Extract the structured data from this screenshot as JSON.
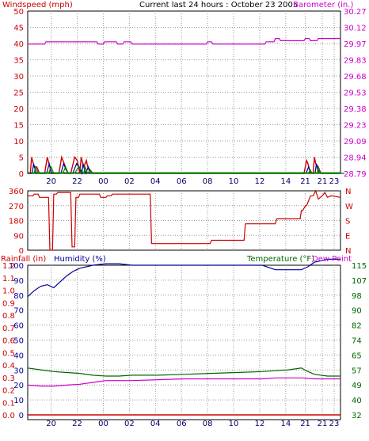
{
  "header": {
    "title": "Current last 24 hours : October 23 2005",
    "left_label": "Windspeed (mph)",
    "right_label": "Barometer (in.)"
  },
  "colors": {
    "wind": "#cc0000",
    "barometer": "#cc00cc",
    "direction": "#cc0000",
    "humidity": "#000099",
    "temperature": "#006600",
    "dewpoint": "#cc00cc",
    "rainfall": "#cc0000",
    "grid": "#999999",
    "gust_blue": "#000099",
    "gust_green": "#008800"
  },
  "x_ticks": [
    "20",
    "22",
    "00",
    "02",
    "04",
    "06",
    "08",
    "10",
    "12",
    "14",
    "21",
    "21",
    "23"
  ],
  "chart_data": [
    {
      "type": "line",
      "name": "wind-barometer",
      "title": "Current last 24 hours : October 23 2005",
      "ylabel": "Windspeed (mph)",
      "y2label": "Barometer (in.)",
      "ylim": [
        0,
        50
      ],
      "yticks": [
        "0",
        "5",
        "10",
        "15",
        "20",
        "25",
        "30",
        "35",
        "40",
        "45",
        "50"
      ],
      "y2lim": [
        28.79,
        30.27
      ],
      "y2ticks": [
        "28.79",
        "28.94",
        "29.09",
        "29.23",
        "29.38",
        "29.53",
        "29.68",
        "29.83",
        "29.97",
        "30.12",
        "30.27"
      ],
      "grid": true,
      "series": [
        {
          "name": "Barometer (in.)",
          "axis": "right",
          "x": [
            0,
            1.3,
            1.4,
            5.3,
            5.4,
            5.8,
            5.9,
            6.8,
            6.9,
            7.3,
            7.4,
            7.9,
            8.0,
            13.7,
            13.8,
            14.1,
            14.2,
            18.2,
            18.3,
            18.5,
            18.6,
            18.9,
            19.0,
            19.3,
            19.4,
            21.2,
            21.3,
            21.6,
            21.7,
            22.2,
            22.3,
            22.6,
            22.7,
            24
          ],
          "y": [
            29.97,
            29.97,
            29.99,
            29.99,
            29.97,
            29.97,
            29.99,
            29.99,
            29.97,
            29.97,
            29.99,
            29.99,
            29.97,
            29.97,
            29.99,
            29.99,
            29.97,
            29.97,
            29.99,
            29.99,
            29.99,
            29.99,
            30.02,
            30.02,
            30.0,
            30.0,
            30.02,
            30.02,
            30.0,
            30.0,
            30.02,
            30.02,
            30.02,
            30.02
          ]
        },
        {
          "name": "Windspeed (mph)",
          "axis": "left",
          "x": [
            0,
            0.2,
            0.3,
            0.5,
            0.7,
            0.9,
            1.0,
            1.3,
            1.5,
            1.7,
            1.8,
            2.4,
            2.6,
            2.8,
            3.0,
            3.1,
            3.3,
            3.6,
            3.8,
            4.0,
            4.1,
            4.3,
            4.5,
            4.6,
            4.8,
            5.0,
            5.3,
            21.2,
            21.4,
            21.5,
            21.7,
            21.9,
            22.0,
            22.1,
            22.3,
            22.5,
            24
          ],
          "y": [
            0,
            0,
            5,
            2,
            2,
            0,
            0,
            0,
            5,
            2,
            0,
            0,
            5,
            3,
            1,
            0,
            0,
            5,
            4,
            0,
            5,
            2,
            4,
            2,
            1,
            0,
            0,
            0,
            4,
            3,
            0,
            0,
            5,
            3,
            2,
            0,
            0
          ]
        }
      ]
    },
    {
      "type": "line",
      "name": "wind-direction",
      "ylim": [
        0,
        360
      ],
      "yticks": [
        "0",
        "90",
        "180",
        "270",
        "360"
      ],
      "y2ticks": [
        "N",
        "E",
        "S",
        "W",
        "N"
      ],
      "grid": true,
      "series": [
        {
          "name": "Wind Direction",
          "x": [
            0,
            0.4,
            0.5,
            0.8,
            0.9,
            1.6,
            1.7,
            1.9,
            2.0,
            2.2,
            2.3,
            3.3,
            3.4,
            3.6,
            3.7,
            3.9,
            4.0,
            5.5,
            5.6,
            6.0,
            6.1,
            6.4,
            6.5,
            9.4,
            9.5,
            14.0,
            14.1,
            16.6,
            16.7,
            19.0,
            19.1,
            20.9,
            21.0,
            21.1,
            21.3,
            21.4,
            21.7,
            21.9,
            22.1,
            22.3,
            22.6,
            22.8,
            23.0,
            23.3,
            24
          ],
          "y": [
            330,
            330,
            340,
            340,
            320,
            320,
            0,
            0,
            340,
            340,
            350,
            350,
            20,
            20,
            320,
            320,
            340,
            340,
            320,
            320,
            330,
            330,
            340,
            340,
            40,
            40,
            60,
            60,
            160,
            160,
            190,
            190,
            240,
            240,
            270,
            270,
            330,
            330,
            360,
            310,
            330,
            350,
            320,
            330,
            320
          ]
        }
      ]
    },
    {
      "type": "line",
      "name": "rain-humidity-temperature",
      "ylabel": "Humidity (%)",
      "y2label": "Temperature (°F)",
      "y3label": "Rainfall (in)",
      "legend": [
        "Rainfall (in)",
        "Humidity (%)",
        "Temperature (°F)",
        "Dew Point"
      ],
      "ylim": [
        0,
        100
      ],
      "yticks": [
        "0",
        "10",
        "20",
        "30",
        "40",
        "50",
        "60",
        "70",
        "80",
        "90",
        "100"
      ],
      "y3ticks": [
        "0.0",
        "0.1",
        "0.2",
        "0.3",
        "0.4",
        "0.5",
        "0.6",
        "0.7",
        "0.8",
        "0.9",
        "1.0",
        "1.1",
        "1.2"
      ],
      "y2lim": [
        32,
        115
      ],
      "y2ticks": [
        "32",
        "40",
        "49",
        "57",
        "65",
        "74",
        "82",
        "90",
        "98",
        "107",
        "115"
      ],
      "grid": true,
      "series": [
        {
          "name": "Humidity (%)",
          "axis": "left",
          "x": [
            0,
            0.5,
            1.0,
            1.5,
            2.0,
            2.5,
            3.0,
            3.5,
            4.0,
            5.0,
            6.0,
            7.0,
            8.0,
            9.0,
            10.0,
            12.0,
            14.0,
            16.0,
            17.0,
            18.0,
            19.0,
            20.0,
            21.0,
            21.5,
            22.0,
            22.5,
            23.0,
            24
          ],
          "y": [
            79,
            83,
            86,
            87,
            85,
            89,
            93,
            96,
            98,
            100,
            101,
            101,
            100,
            100,
            100,
            100,
            100,
            100,
            100,
            100,
            97,
            97,
            97,
            99,
            102,
            103,
            104,
            104
          ]
        },
        {
          "name": "Temperature (°F)",
          "axis": "right",
          "x": [
            0,
            1,
            2,
            3,
            4,
            5,
            6,
            7,
            8,
            10,
            12,
            14,
            16,
            18,
            19,
            20,
            21,
            21.5,
            22,
            23,
            24
          ],
          "y": [
            58,
            57,
            56,
            55.5,
            55,
            54,
            53.5,
            53.5,
            54,
            54,
            54.5,
            55,
            55.5,
            56,
            56.5,
            57,
            58,
            56,
            54.5,
            53.5,
            53.5
          ]
        },
        {
          "name": "Dew Point",
          "axis": "right",
          "x": [
            0,
            1,
            2,
            3,
            4,
            5,
            6,
            7,
            8,
            10,
            12,
            14,
            16,
            18,
            19,
            20,
            21,
            22,
            23,
            24
          ],
          "y": [
            48.5,
            48,
            48,
            48.5,
            49,
            50,
            51,
            51,
            51,
            51.5,
            52,
            52,
            52,
            52,
            52.5,
            52.5,
            52.5,
            52,
            52,
            52
          ]
        },
        {
          "name": "Rainfall (in)",
          "axis": "left",
          "x": [
            0,
            24
          ],
          "y": [
            0,
            0
          ]
        }
      ]
    }
  ]
}
